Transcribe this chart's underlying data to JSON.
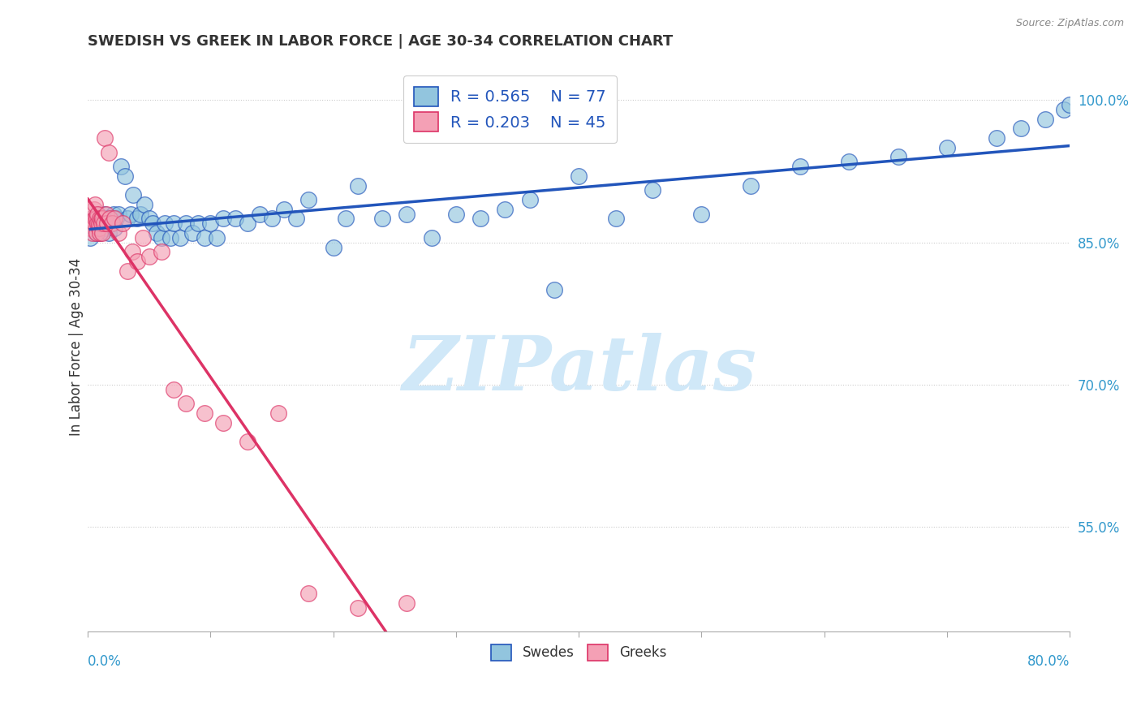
{
  "title": "SWEDISH VS GREEK IN LABOR FORCE | AGE 30-34 CORRELATION CHART",
  "source": "Source: ZipAtlas.com",
  "ylabel": "In Labor Force | Age 30-34",
  "xlim": [
    0.0,
    0.8
  ],
  "ylim": [
    0.44,
    1.04
  ],
  "blue_color": "#92c5de",
  "pink_color": "#f4a0b5",
  "trend_blue_color": "#2255bb",
  "trend_pink_color": "#dd3366",
  "watermark": "ZIPatlas",
  "watermark_color": "#d0e8f8",
  "blue_scatter_x": [
    0.002,
    0.004,
    0.005,
    0.006,
    0.007,
    0.008,
    0.009,
    0.01,
    0.011,
    0.012,
    0.013,
    0.014,
    0.015,
    0.016,
    0.017,
    0.018,
    0.019,
    0.02,
    0.021,
    0.022,
    0.023,
    0.025,
    0.027,
    0.03,
    0.032,
    0.035,
    0.037,
    0.04,
    0.043,
    0.046,
    0.05,
    0.053,
    0.056,
    0.06,
    0.063,
    0.067,
    0.07,
    0.075,
    0.08,
    0.085,
    0.09,
    0.095,
    0.1,
    0.105,
    0.11,
    0.12,
    0.13,
    0.14,
    0.15,
    0.16,
    0.17,
    0.18,
    0.2,
    0.21,
    0.22,
    0.24,
    0.26,
    0.28,
    0.3,
    0.32,
    0.34,
    0.36,
    0.38,
    0.4,
    0.43,
    0.46,
    0.5,
    0.54,
    0.58,
    0.62,
    0.66,
    0.7,
    0.74,
    0.76,
    0.78,
    0.795,
    0.8
  ],
  "blue_scatter_y": [
    0.855,
    0.87,
    0.865,
    0.875,
    0.86,
    0.88,
    0.87,
    0.86,
    0.875,
    0.865,
    0.87,
    0.88,
    0.865,
    0.875,
    0.86,
    0.87,
    0.875,
    0.87,
    0.88,
    0.865,
    0.875,
    0.88,
    0.93,
    0.92,
    0.875,
    0.88,
    0.9,
    0.875,
    0.88,
    0.89,
    0.875,
    0.87,
    0.86,
    0.855,
    0.87,
    0.855,
    0.87,
    0.855,
    0.87,
    0.86,
    0.87,
    0.855,
    0.87,
    0.855,
    0.875,
    0.875,
    0.87,
    0.88,
    0.875,
    0.885,
    0.875,
    0.895,
    0.845,
    0.875,
    0.91,
    0.875,
    0.88,
    0.855,
    0.88,
    0.875,
    0.885,
    0.895,
    0.8,
    0.92,
    0.875,
    0.905,
    0.88,
    0.91,
    0.93,
    0.935,
    0.94,
    0.95,
    0.96,
    0.97,
    0.98,
    0.99,
    0.995
  ],
  "pink_scatter_x": [
    0.001,
    0.002,
    0.003,
    0.004,
    0.005,
    0.005,
    0.006,
    0.006,
    0.007,
    0.007,
    0.008,
    0.008,
    0.009,
    0.009,
    0.01,
    0.01,
    0.011,
    0.011,
    0.012,
    0.012,
    0.013,
    0.014,
    0.015,
    0.016,
    0.017,
    0.018,
    0.02,
    0.022,
    0.025,
    0.028,
    0.032,
    0.036,
    0.04,
    0.045,
    0.05,
    0.06,
    0.07,
    0.08,
    0.095,
    0.11,
    0.13,
    0.155,
    0.18,
    0.22,
    0.26
  ],
  "pink_scatter_y": [
    0.87,
    0.865,
    0.875,
    0.86,
    0.87,
    0.885,
    0.875,
    0.89,
    0.86,
    0.875,
    0.87,
    0.88,
    0.865,
    0.87,
    0.875,
    0.86,
    0.875,
    0.87,
    0.86,
    0.875,
    0.87,
    0.96,
    0.88,
    0.87,
    0.945,
    0.875,
    0.87,
    0.875,
    0.86,
    0.87,
    0.82,
    0.84,
    0.83,
    0.855,
    0.835,
    0.84,
    0.695,
    0.68,
    0.67,
    0.66,
    0.64,
    0.67,
    0.48,
    0.465,
    0.47
  ]
}
